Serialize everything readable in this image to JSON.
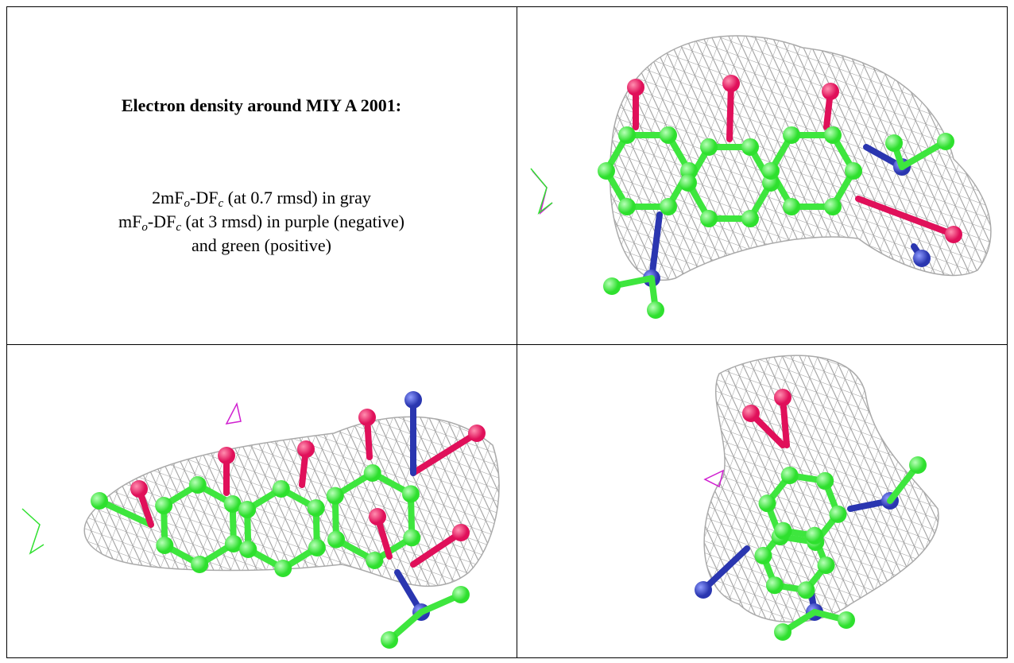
{
  "header": {
    "title": "Electron density around MIY A 2001:"
  },
  "legend": {
    "line1": [
      "2mF",
      "o",
      "-DF",
      "c",
      " (at 0.7 rmsd) in gray"
    ],
    "line2": [
      "mF",
      "o",
      "-DF",
      "c",
      " (at 3 rmsd) in purple (negative)"
    ],
    "line3": [
      "and green (positive)"
    ]
  }
}
